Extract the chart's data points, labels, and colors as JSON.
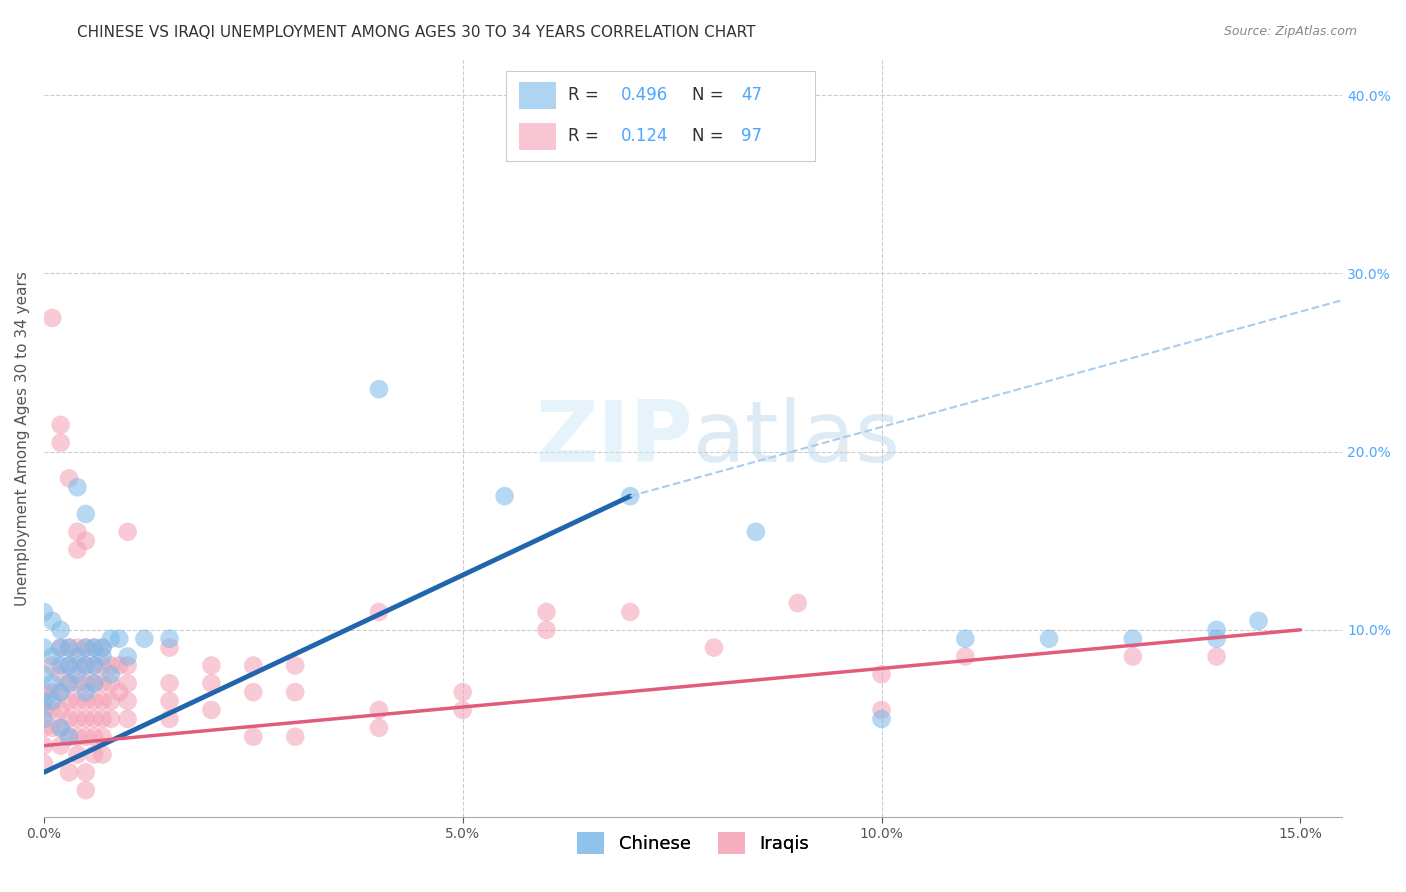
{
  "title": "CHINESE VS IRAQI UNEMPLOYMENT AMONG AGES 30 TO 34 YEARS CORRELATION CHART",
  "source": "Source: ZipAtlas.com",
  "ylabel": "Unemployment Among Ages 30 to 34 years",
  "xlim": [
    0.0,
    0.155
  ],
  "ylim": [
    -0.005,
    0.42
  ],
  "xticks": [
    0.0,
    0.05,
    0.1,
    0.15
  ],
  "xtick_labels": [
    "0.0%",
    "5.0%",
    "10.0%",
    "15.0%"
  ],
  "ytick_labels_right": [
    "10.0%",
    "20.0%",
    "30.0%",
    "40.0%"
  ],
  "ytick_positions_right": [
    0.1,
    0.2,
    0.3,
    0.4
  ],
  "chinese_color": "#7ab8e8",
  "iraqi_color": "#f4a0b5",
  "chinese_line_color": "#2166ac",
  "iraqi_line_color": "#e05c7a",
  "dashed_line_color": "#aaccee",
  "bg_color": "#ffffff",
  "grid_color": "#cccccc",
  "chinese_trendline": [
    [
      0.0,
      0.02
    ],
    [
      0.07,
      0.175
    ]
  ],
  "iraqi_trendline": [
    [
      0.0,
      0.035
    ],
    [
      0.15,
      0.1
    ]
  ],
  "dashed_trendline": [
    [
      0.07,
      0.175
    ],
    [
      0.155,
      0.285
    ]
  ],
  "chinese_scatter": [
    [
      0.0,
      0.11
    ],
    [
      0.0,
      0.09
    ],
    [
      0.0,
      0.075
    ],
    [
      0.0,
      0.06
    ],
    [
      0.0,
      0.05
    ],
    [
      0.001,
      0.105
    ],
    [
      0.001,
      0.085
    ],
    [
      0.001,
      0.07
    ],
    [
      0.001,
      0.06
    ],
    [
      0.002,
      0.1
    ],
    [
      0.002,
      0.09
    ],
    [
      0.002,
      0.08
    ],
    [
      0.002,
      0.065
    ],
    [
      0.003,
      0.09
    ],
    [
      0.003,
      0.08
    ],
    [
      0.003,
      0.07
    ],
    [
      0.004,
      0.18
    ],
    [
      0.004,
      0.085
    ],
    [
      0.004,
      0.075
    ],
    [
      0.005,
      0.165
    ],
    [
      0.005,
      0.09
    ],
    [
      0.005,
      0.08
    ],
    [
      0.006,
      0.09
    ],
    [
      0.006,
      0.08
    ],
    [
      0.006,
      0.07
    ],
    [
      0.007,
      0.09
    ],
    [
      0.007,
      0.085
    ],
    [
      0.008,
      0.095
    ],
    [
      0.008,
      0.075
    ],
    [
      0.009,
      0.095
    ],
    [
      0.01,
      0.085
    ],
    [
      0.012,
      0.095
    ],
    [
      0.015,
      0.095
    ],
    [
      0.04,
      0.235
    ],
    [
      0.055,
      0.175
    ],
    [
      0.07,
      0.175
    ],
    [
      0.085,
      0.155
    ],
    [
      0.1,
      0.05
    ],
    [
      0.11,
      0.095
    ],
    [
      0.12,
      0.095
    ],
    [
      0.13,
      0.095
    ],
    [
      0.14,
      0.1
    ],
    [
      0.14,
      0.095
    ],
    [
      0.145,
      0.105
    ],
    [
      0.005,
      0.065
    ],
    [
      0.002,
      0.045
    ],
    [
      0.003,
      0.04
    ]
  ],
  "iraqi_scatter": [
    [
      0.0,
      0.065
    ],
    [
      0.0,
      0.055
    ],
    [
      0.0,
      0.045
    ],
    [
      0.0,
      0.035
    ],
    [
      0.0,
      0.025
    ],
    [
      0.001,
      0.275
    ],
    [
      0.001,
      0.08
    ],
    [
      0.001,
      0.065
    ],
    [
      0.001,
      0.055
    ],
    [
      0.001,
      0.045
    ],
    [
      0.002,
      0.215
    ],
    [
      0.002,
      0.205
    ],
    [
      0.002,
      0.09
    ],
    [
      0.002,
      0.075
    ],
    [
      0.002,
      0.065
    ],
    [
      0.002,
      0.055
    ],
    [
      0.002,
      0.045
    ],
    [
      0.002,
      0.035
    ],
    [
      0.003,
      0.185
    ],
    [
      0.003,
      0.09
    ],
    [
      0.003,
      0.08
    ],
    [
      0.003,
      0.07
    ],
    [
      0.003,
      0.06
    ],
    [
      0.003,
      0.05
    ],
    [
      0.003,
      0.04
    ],
    [
      0.003,
      0.02
    ],
    [
      0.004,
      0.155
    ],
    [
      0.004,
      0.145
    ],
    [
      0.004,
      0.09
    ],
    [
      0.004,
      0.08
    ],
    [
      0.004,
      0.07
    ],
    [
      0.004,
      0.06
    ],
    [
      0.004,
      0.05
    ],
    [
      0.004,
      0.04
    ],
    [
      0.004,
      0.03
    ],
    [
      0.005,
      0.15
    ],
    [
      0.005,
      0.09
    ],
    [
      0.005,
      0.08
    ],
    [
      0.005,
      0.07
    ],
    [
      0.005,
      0.06
    ],
    [
      0.005,
      0.05
    ],
    [
      0.005,
      0.04
    ],
    [
      0.005,
      0.02
    ],
    [
      0.005,
      0.01
    ],
    [
      0.006,
      0.09
    ],
    [
      0.006,
      0.08
    ],
    [
      0.006,
      0.07
    ],
    [
      0.006,
      0.06
    ],
    [
      0.006,
      0.05
    ],
    [
      0.006,
      0.04
    ],
    [
      0.006,
      0.03
    ],
    [
      0.007,
      0.09
    ],
    [
      0.007,
      0.08
    ],
    [
      0.007,
      0.07
    ],
    [
      0.007,
      0.06
    ],
    [
      0.007,
      0.05
    ],
    [
      0.007,
      0.04
    ],
    [
      0.007,
      0.03
    ],
    [
      0.008,
      0.08
    ],
    [
      0.008,
      0.07
    ],
    [
      0.008,
      0.06
    ],
    [
      0.008,
      0.05
    ],
    [
      0.009,
      0.08
    ],
    [
      0.009,
      0.065
    ],
    [
      0.01,
      0.155
    ],
    [
      0.01,
      0.08
    ],
    [
      0.01,
      0.07
    ],
    [
      0.01,
      0.06
    ],
    [
      0.01,
      0.05
    ],
    [
      0.015,
      0.09
    ],
    [
      0.015,
      0.07
    ],
    [
      0.015,
      0.06
    ],
    [
      0.015,
      0.05
    ],
    [
      0.02,
      0.08
    ],
    [
      0.02,
      0.07
    ],
    [
      0.02,
      0.055
    ],
    [
      0.025,
      0.08
    ],
    [
      0.025,
      0.065
    ],
    [
      0.025,
      0.04
    ],
    [
      0.03,
      0.08
    ],
    [
      0.03,
      0.065
    ],
    [
      0.03,
      0.04
    ],
    [
      0.04,
      0.11
    ],
    [
      0.04,
      0.055
    ],
    [
      0.04,
      0.045
    ],
    [
      0.05,
      0.065
    ],
    [
      0.05,
      0.055
    ],
    [
      0.06,
      0.11
    ],
    [
      0.06,
      0.1
    ],
    [
      0.07,
      0.11
    ],
    [
      0.08,
      0.09
    ],
    [
      0.09,
      0.115
    ],
    [
      0.1,
      0.075
    ],
    [
      0.1,
      0.055
    ],
    [
      0.11,
      0.085
    ],
    [
      0.13,
      0.085
    ],
    [
      0.14,
      0.085
    ]
  ],
  "title_fontsize": 11,
  "axis_label_fontsize": 11,
  "tick_fontsize": 10
}
